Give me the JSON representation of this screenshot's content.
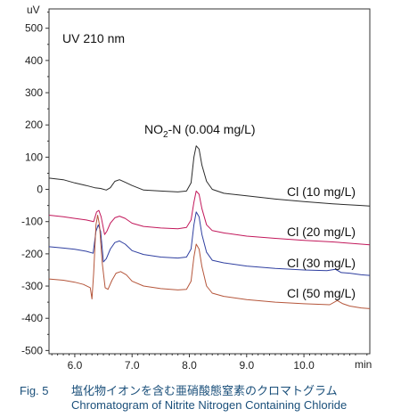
{
  "chart_data": {
    "type": "line",
    "y_unit_label": "uV",
    "xlabel": "min",
    "xlim": [
      5.55,
      11.15
    ],
    "ylim": [
      -510,
      560
    ],
    "x_ticks": [
      6.0,
      7.0,
      8.0,
      9.0,
      10.0
    ],
    "y_ticks": [
      500,
      400,
      300,
      200,
      100,
      0,
      -100,
      -200,
      -300,
      -400,
      -500
    ],
    "annotations": {
      "detector": "UV 210 nm",
      "peak_label": "NO",
      "peak_label_sub": "2",
      "peak_label_rest": "-N (0.004 mg/L)"
    },
    "series": [
      {
        "name": "Cl (10 mg/L)",
        "color": "#2b2b2b",
        "points": [
          [
            5.55,
            35
          ],
          [
            5.8,
            30
          ],
          [
            6.0,
            20
          ],
          [
            6.2,
            12
          ],
          [
            6.35,
            5
          ],
          [
            6.45,
            3
          ],
          [
            6.55,
            -2
          ],
          [
            6.62,
            5
          ],
          [
            6.7,
            25
          ],
          [
            6.78,
            30
          ],
          [
            6.88,
            22
          ],
          [
            7.0,
            12
          ],
          [
            7.2,
            -2
          ],
          [
            7.5,
            -5
          ],
          [
            7.8,
            -8
          ],
          [
            7.95,
            -5
          ],
          [
            8.03,
            20
          ],
          [
            8.08,
            100
          ],
          [
            8.12,
            135
          ],
          [
            8.17,
            125
          ],
          [
            8.22,
            75
          ],
          [
            8.3,
            25
          ],
          [
            8.4,
            0
          ],
          [
            8.6,
            -12
          ],
          [
            9.0,
            -20
          ],
          [
            9.5,
            -30
          ],
          [
            10.0,
            -38
          ],
          [
            10.5,
            -45
          ],
          [
            11.0,
            -50
          ],
          [
            11.15,
            -52
          ]
        ]
      },
      {
        "name": "Cl (20 mg/L)",
        "color": "#c2185b",
        "points": [
          [
            5.55,
            -80
          ],
          [
            5.8,
            -85
          ],
          [
            6.0,
            -90
          ],
          [
            6.2,
            -95
          ],
          [
            6.33,
            -100
          ],
          [
            6.38,
            -70
          ],
          [
            6.42,
            -65
          ],
          [
            6.46,
            -85
          ],
          [
            6.52,
            -140
          ],
          [
            6.56,
            -130
          ],
          [
            6.62,
            -105
          ],
          [
            6.7,
            -88
          ],
          [
            6.78,
            -83
          ],
          [
            6.88,
            -90
          ],
          [
            7.0,
            -105
          ],
          [
            7.2,
            -115
          ],
          [
            7.5,
            -120
          ],
          [
            7.8,
            -122
          ],
          [
            7.95,
            -118
          ],
          [
            8.03,
            -95
          ],
          [
            8.08,
            -40
          ],
          [
            8.12,
            -5
          ],
          [
            8.17,
            -15
          ],
          [
            8.22,
            -60
          ],
          [
            8.3,
            -110
          ],
          [
            8.4,
            -128
          ],
          [
            8.6,
            -135
          ],
          [
            9.0,
            -145
          ],
          [
            9.5,
            -152
          ],
          [
            10.0,
            -158
          ],
          [
            10.5,
            -163
          ],
          [
            11.0,
            -170
          ],
          [
            11.15,
            -172
          ]
        ]
      },
      {
        "name": "Cl (30 mg/L)",
        "color": "#2f3fa0",
        "points": [
          [
            5.55,
            -178
          ],
          [
            5.8,
            -182
          ],
          [
            6.0,
            -186
          ],
          [
            6.2,
            -192
          ],
          [
            6.32,
            -198
          ],
          [
            6.37,
            -130
          ],
          [
            6.41,
            -110
          ],
          [
            6.45,
            -130
          ],
          [
            6.5,
            -225
          ],
          [
            6.55,
            -215
          ],
          [
            6.62,
            -185
          ],
          [
            6.7,
            -165
          ],
          [
            6.78,
            -160
          ],
          [
            6.88,
            -170
          ],
          [
            7.0,
            -190
          ],
          [
            7.2,
            -202
          ],
          [
            7.5,
            -210
          ],
          [
            7.8,
            -213
          ],
          [
            7.95,
            -210
          ],
          [
            8.03,
            -185
          ],
          [
            8.08,
            -110
          ],
          [
            8.12,
            -70
          ],
          [
            8.17,
            -85
          ],
          [
            8.22,
            -140
          ],
          [
            8.3,
            -195
          ],
          [
            8.4,
            -220
          ],
          [
            8.6,
            -228
          ],
          [
            9.0,
            -238
          ],
          [
            9.5,
            -245
          ],
          [
            10.0,
            -250
          ],
          [
            10.4,
            -252
          ],
          [
            10.55,
            -248
          ],
          [
            10.65,
            -258
          ],
          [
            10.8,
            -260
          ],
          [
            11.0,
            -265
          ],
          [
            11.15,
            -267
          ]
        ]
      },
      {
        "name": "Cl (50 mg/L)",
        "color": "#b5563b",
        "points": [
          [
            5.55,
            -278
          ],
          [
            5.8,
            -282
          ],
          [
            6.0,
            -288
          ],
          [
            6.15,
            -295
          ],
          [
            6.27,
            -305
          ],
          [
            6.3,
            -340
          ],
          [
            6.33,
            -260
          ],
          [
            6.37,
            -110
          ],
          [
            6.4,
            -80
          ],
          [
            6.43,
            -110
          ],
          [
            6.48,
            -230
          ],
          [
            6.53,
            -305
          ],
          [
            6.58,
            -310
          ],
          [
            6.65,
            -282
          ],
          [
            6.72,
            -260
          ],
          [
            6.8,
            -255
          ],
          [
            6.9,
            -265
          ],
          [
            7.0,
            -285
          ],
          [
            7.2,
            -300
          ],
          [
            7.5,
            -308
          ],
          [
            7.8,
            -312
          ],
          [
            7.95,
            -310
          ],
          [
            8.03,
            -285
          ],
          [
            8.08,
            -210
          ],
          [
            8.12,
            -170
          ],
          [
            8.17,
            -185
          ],
          [
            8.22,
            -240
          ],
          [
            8.3,
            -300
          ],
          [
            8.4,
            -322
          ],
          [
            8.6,
            -332
          ],
          [
            9.0,
            -342
          ],
          [
            9.5,
            -350
          ],
          [
            10.0,
            -355
          ],
          [
            10.45,
            -358
          ],
          [
            10.58,
            -345
          ],
          [
            10.68,
            -355
          ],
          [
            10.8,
            -362
          ],
          [
            11.0,
            -368
          ],
          [
            11.15,
            -370
          ]
        ]
      }
    ]
  },
  "caption": {
    "fig_no": "Fig. 5",
    "title_ja": "塩化物イオンを含む亜硝酸態窒素のクロマトグラム",
    "title_en": "Chromatogram of Nitrite Nitrogen Containing Chloride"
  }
}
